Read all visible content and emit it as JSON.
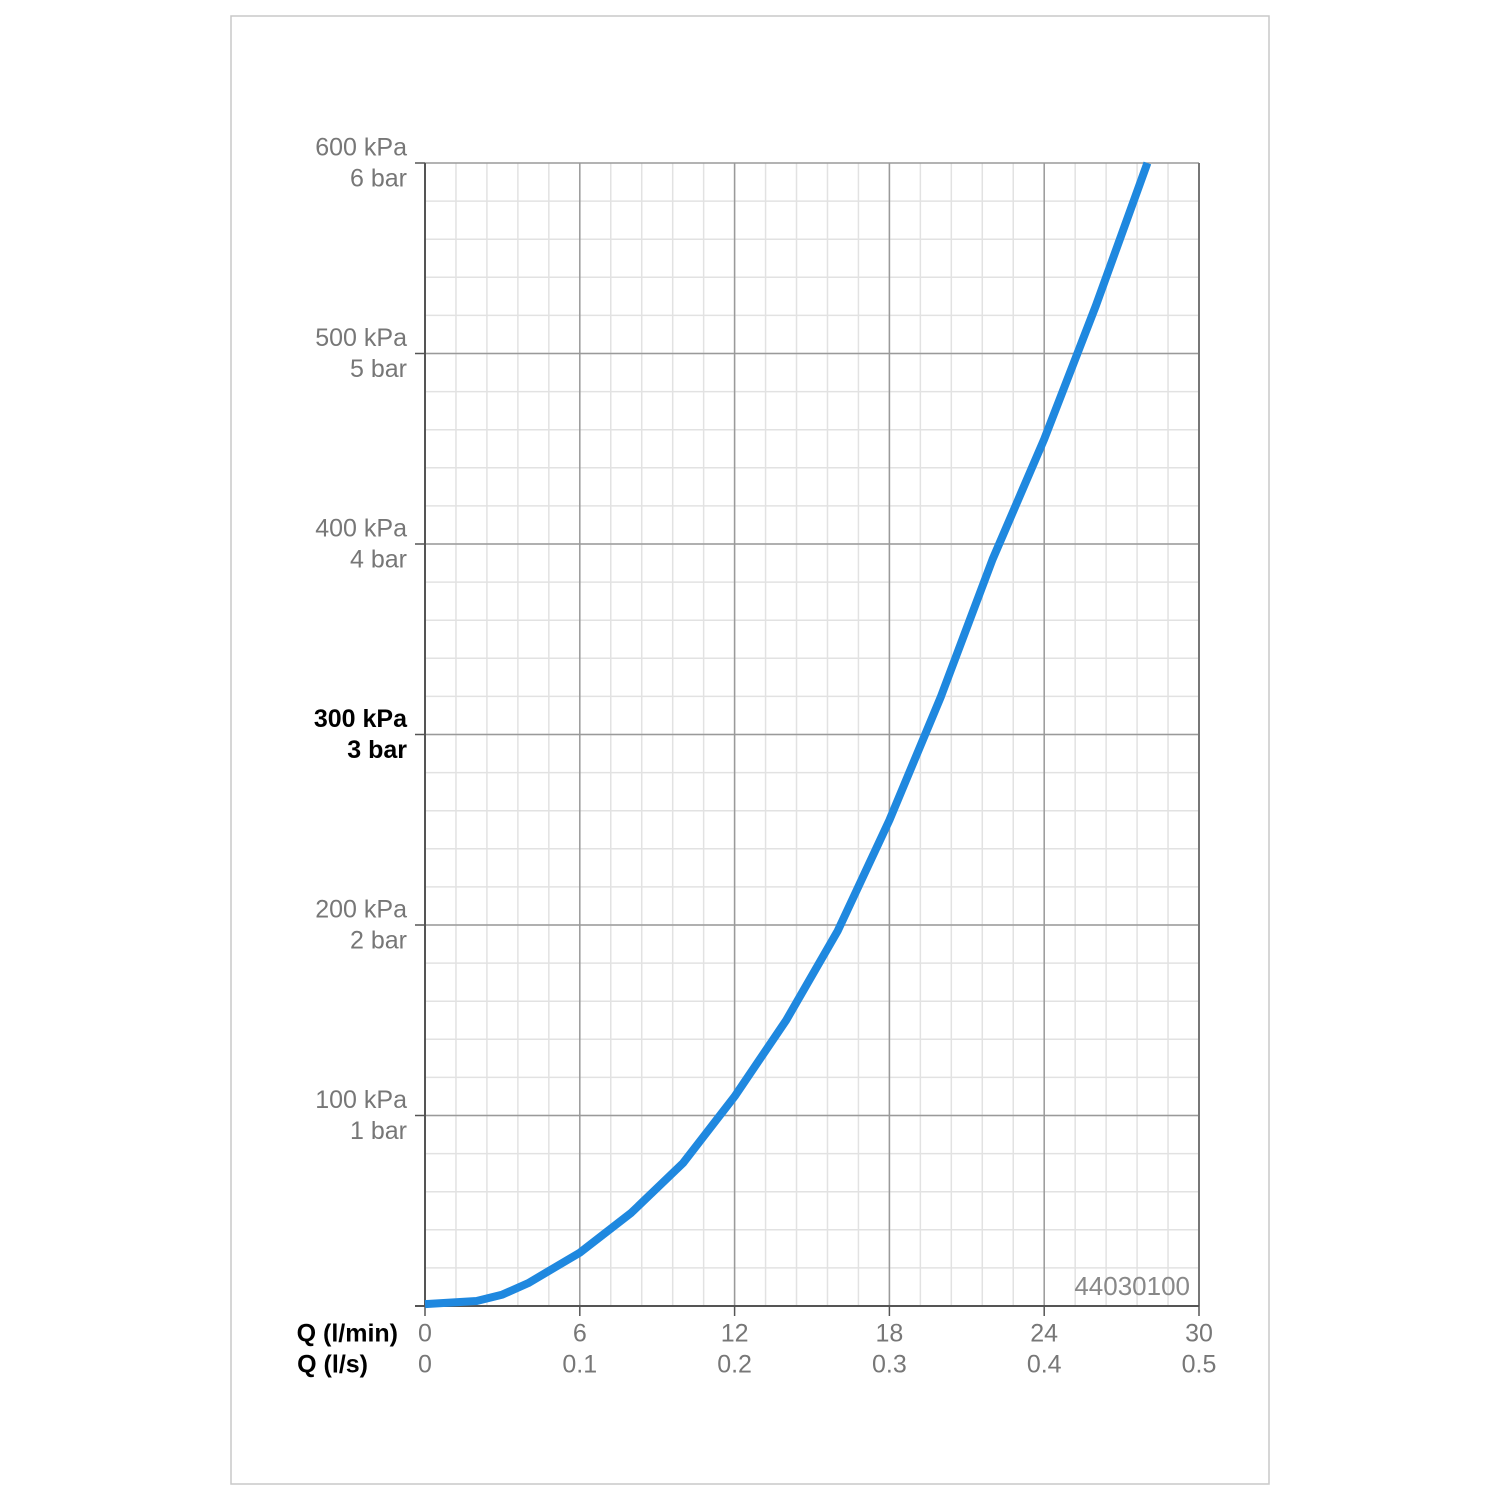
{
  "chart_data": {
    "type": "line",
    "x": [
      0,
      2,
      3,
      4,
      6,
      8,
      10,
      12,
      14,
      16,
      18,
      20,
      22,
      24,
      26,
      28
    ],
    "series": [
      {
        "color": "#1f88df",
        "values": [
          1,
          2.6,
          6,
          12,
          28,
          49,
          75,
          110,
          150,
          197,
          255,
          320,
          392,
          455,
          525,
          600
        ]
      }
    ],
    "xlim": [
      0,
      30
    ],
    "xticks": [
      0,
      6,
      12,
      18,
      24,
      30
    ],
    "xlabel": "Q (l/min)",
    "x2lim": [
      0,
      0.5
    ],
    "x2ticks": [
      0,
      0.1,
      0.2,
      0.3,
      0.4,
      0.5
    ],
    "x2label": "Q (l/s)",
    "ylim": [
      0,
      600
    ],
    "yticks": [
      {
        "value": 100,
        "label": "100 kPa"
      },
      {
        "value": 200,
        "label": "200 kPa"
      },
      {
        "value": 300,
        "label": "300 kPa"
      },
      {
        "value": 400,
        "label": "400 kPa"
      },
      {
        "value": 500,
        "label": "500 kPa"
      },
      {
        "value": 600,
        "label": "600 kPa"
      }
    ],
    "y2lim": [
      0,
      6
    ],
    "y2ticks": [
      {
        "value": 1,
        "label": "1 bar"
      },
      {
        "value": 2,
        "label": "2 bar"
      },
      {
        "value": 3,
        "label": "3 bar"
      },
      {
        "value": 4,
        "label": "4 bar"
      },
      {
        "value": 5,
        "label": "5 bar"
      },
      {
        "value": 6,
        "label": "6 bar"
      }
    ],
    "highlight_ytick": 300,
    "grid": true,
    "minor_xstep": 1.2,
    "minor_ystep": 20,
    "annotation": "44030100"
  }
}
